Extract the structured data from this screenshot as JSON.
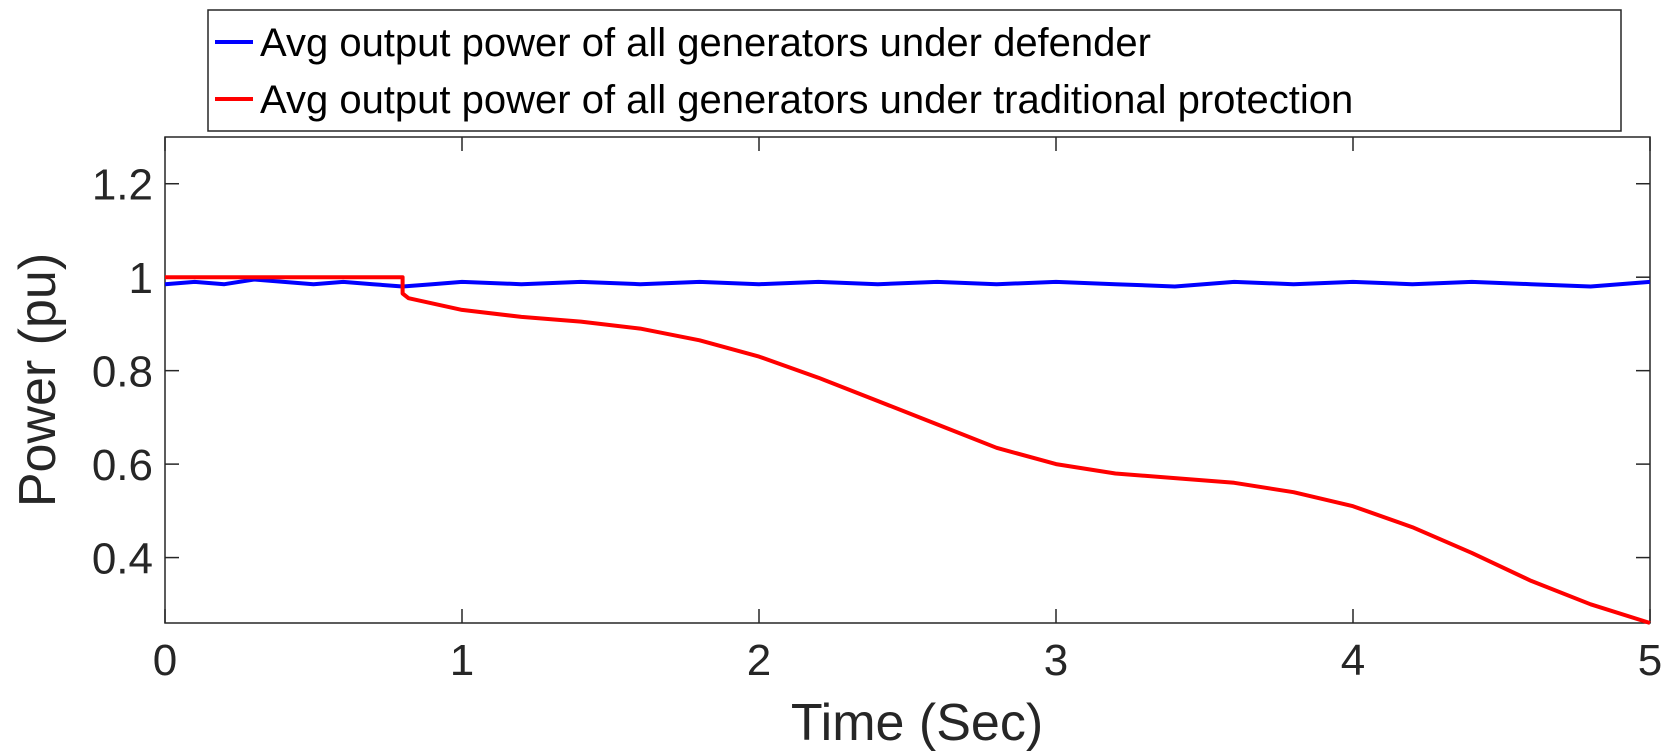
{
  "chart_data": {
    "type": "line",
    "title": "",
    "xlabel": "Time (Sec)",
    "ylabel": "Power (pu)",
    "xlim": [
      0,
      5
    ],
    "ylim": [
      0.26,
      1.3
    ],
    "xticks": [
      "0",
      "1",
      "2",
      "3",
      "4",
      "5"
    ],
    "yticks": [
      "0.4",
      "0.6",
      "0.8",
      "1",
      "1.2"
    ],
    "grid": false,
    "legend_position": "top",
    "series": [
      {
        "name": "Avg output power of all generators under defender",
        "color": "#0000ff",
        "x": [
          0,
          0.1,
          0.2,
          0.3,
          0.4,
          0.5,
          0.6,
          0.7,
          0.8,
          0.9,
          1.0,
          1.2,
          1.4,
          1.6,
          1.8,
          2.0,
          2.2,
          2.4,
          2.6,
          2.8,
          3.0,
          3.2,
          3.4,
          3.6,
          3.8,
          4.0,
          4.2,
          4.4,
          4.6,
          4.8,
          5.0
        ],
        "y": [
          0.985,
          0.99,
          0.985,
          0.995,
          0.99,
          0.985,
          0.99,
          0.985,
          0.98,
          0.985,
          0.99,
          0.985,
          0.99,
          0.985,
          0.99,
          0.985,
          0.99,
          0.985,
          0.99,
          0.985,
          0.99,
          0.985,
          0.98,
          0.99,
          0.985,
          0.99,
          0.985,
          0.99,
          0.985,
          0.98,
          0.99
        ]
      },
      {
        "name": "Avg output power of all generators under traditional protection",
        "color": "#ff0000",
        "x": [
          0,
          0.8,
          0.8,
          0.82,
          1.0,
          1.2,
          1.4,
          1.6,
          1.8,
          2.0,
          2.2,
          2.4,
          2.6,
          2.8,
          3.0,
          3.2,
          3.4,
          3.6,
          3.8,
          4.0,
          4.2,
          4.4,
          4.6,
          4.8,
          5.0
        ],
        "y": [
          1.0,
          1.0,
          0.965,
          0.955,
          0.93,
          0.915,
          0.905,
          0.89,
          0.865,
          0.83,
          0.785,
          0.735,
          0.685,
          0.635,
          0.6,
          0.58,
          0.57,
          0.56,
          0.54,
          0.51,
          0.465,
          0.41,
          0.35,
          0.3,
          0.26
        ]
      }
    ]
  }
}
